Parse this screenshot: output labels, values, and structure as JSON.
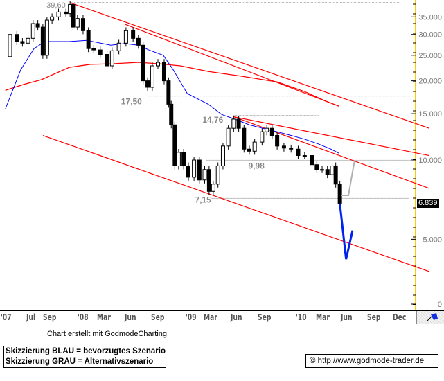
{
  "chart_data": {
    "type": "candlestick",
    "yscale": "log",
    "yticks": [
      "35.000",
      "30.000",
      "25.000",
      "20.000",
      "15.000",
      "10.000",
      "5.000",
      "0"
    ],
    "ytick_values": [
      35,
      30,
      25,
      20,
      15,
      10,
      5
    ],
    "xticks": [
      "'07",
      "Jul",
      "Sep",
      "'08",
      "Mar",
      "Jun",
      "Sep",
      "'09",
      "Mar",
      "Jun",
      "Sep",
      "'10",
      "Mar",
      "Jun",
      "Sep",
      "Dec"
    ],
    "last_value": "6.839",
    "colors": {
      "up": "#ffffff",
      "down": "#000000",
      "ma_short": "#0000ff",
      "ma_long": "#ff0000",
      "trendline": "#ff0000",
      "level": "#808080",
      "scenario_blue": "#0022ee",
      "scenario_gray": "#b0b0b0",
      "axis": "#ffcc00"
    },
    "closes": [
      [
        "2007-04-15",
        24.7
      ],
      [
        "2007-05-01",
        30
      ],
      [
        "2007-05-24",
        28.2
      ],
      [
        "2007-06-12",
        27.8
      ],
      [
        "2007-07-01",
        29
      ],
      [
        "2007-07-18",
        33
      ],
      [
        "2007-08-03",
        32
      ],
      [
        "2007-08-20",
        25
      ],
      [
        "2007-09-03",
        34
      ],
      [
        "2007-09-20",
        35
      ],
      [
        "2007-10-12",
        36.5
      ],
      [
        "2007-11-06",
        36
      ],
      [
        "2007-11-20",
        39
      ],
      [
        "2007-11-30",
        32
      ],
      [
        "2007-12-15",
        34.5
      ],
      [
        "2008-01-03",
        31
      ],
      [
        "2008-01-21",
        26.5
      ],
      [
        "2008-02-08",
        26.2
      ],
      [
        "2008-03-01",
        25.2
      ],
      [
        "2008-03-24",
        22.8
      ],
      [
        "2008-04-10",
        26
      ],
      [
        "2008-05-03",
        27.8
      ],
      [
        "2008-05-27",
        31
      ],
      [
        "2008-06-20",
        29
      ],
      [
        "2008-07-08",
        27.3
      ],
      [
        "2008-07-24",
        20
      ],
      [
        "2008-08-08",
        18.9
      ],
      [
        "2008-08-24",
        22.8
      ],
      [
        "2008-09-12",
        23.5
      ],
      [
        "2008-10-03",
        20
      ],
      [
        "2008-10-18",
        16.3
      ],
      [
        "2008-10-27",
        13.6
      ],
      [
        "2008-11-08",
        9.5
      ],
      [
        "2008-11-21",
        10.7
      ],
      [
        "2008-12-08",
        9.5
      ],
      [
        "2008-12-24",
        8.6
      ],
      [
        "2009-01-12",
        10
      ],
      [
        "2009-01-30",
        8.4
      ],
      [
        "2009-02-17",
        9.2
      ],
      [
        "2009-03-04",
        7.6
      ],
      [
        "2009-03-18",
        8.1
      ],
      [
        "2009-04-03",
        9.5
      ],
      [
        "2009-04-20",
        11.3
      ],
      [
        "2009-05-08",
        13.2
      ],
      [
        "2009-05-26",
        14.3
      ],
      [
        "2009-06-12",
        13.2
      ],
      [
        "2009-06-30",
        11
      ],
      [
        "2009-07-18",
        10.8
      ],
      [
        "2009-08-05",
        11.7
      ],
      [
        "2009-08-30",
        12.8
      ],
      [
        "2009-09-15",
        13.2
      ],
      [
        "2009-10-03",
        12.4
      ],
      [
        "2009-10-20",
        11.3
      ],
      [
        "2009-11-12",
        11.1
      ],
      [
        "2009-12-06",
        11
      ],
      [
        "2009-12-30",
        10.4
      ],
      [
        "2010-01-21",
        10.4
      ],
      [
        "2010-02-15",
        9.6
      ],
      [
        "2010-03-03",
        9.2
      ],
      [
        "2010-03-21",
        9.2
      ],
      [
        "2010-04-08",
        8.8
      ],
      [
        "2010-04-24",
        9.5
      ],
      [
        "2010-05-06",
        8.1
      ],
      [
        "2010-05-20",
        6.84
      ]
    ],
    "ma_short": [
      [
        "2007-04-15",
        15.6
      ],
      [
        "2007-06-06",
        22
      ],
      [
        "2007-07-21",
        26.5
      ],
      [
        "2007-08-27",
        28.2
      ],
      [
        "2007-11-17",
        28.2
      ],
      [
        "2008-01-15",
        28.5
      ],
      [
        "2008-04-06",
        27.3
      ],
      [
        "2008-05-22",
        27.7
      ],
      [
        "2008-07-08",
        27.3
      ],
      [
        "2008-08-12",
        26.2
      ],
      [
        "2008-09-30",
        25
      ],
      [
        "2008-11-03",
        22
      ],
      [
        "2008-12-20",
        17.9
      ],
      [
        "2009-03-01",
        16.3
      ],
      [
        "2009-04-15",
        14.9
      ],
      [
        "2009-05-30",
        14.3
      ],
      [
        "2009-07-18",
        13.6
      ],
      [
        "2009-09-01",
        13.2
      ],
      [
        "2009-10-20",
        12.8
      ],
      [
        "2009-12-06",
        12.4
      ],
      [
        "2010-01-21",
        12
      ],
      [
        "2010-03-09",
        11.5
      ],
      [
        "2010-04-20",
        11
      ],
      [
        "2010-05-18",
        10.6
      ]
    ],
    "ma_long": [
      [
        "2007-04-15",
        18.4
      ],
      [
        "2007-06-18",
        19.4
      ],
      [
        "2007-08-15",
        20.2
      ],
      [
        "2007-11-17",
        22.5
      ],
      [
        "2008-01-27",
        23.1
      ],
      [
        "2008-04-06",
        23.2
      ],
      [
        "2008-07-08",
        23.5
      ],
      [
        "2008-09-18",
        23.2
      ],
      [
        "2008-11-27",
        22.8
      ],
      [
        "2009-03-01",
        21.7
      ],
      [
        "2009-06-24",
        20.8
      ],
      [
        "2009-10-20",
        19.8
      ],
      [
        "2010-01-21",
        18.2
      ],
      [
        "2010-03-30",
        16.8
      ],
      [
        "2010-05-18",
        16
      ]
    ],
    "trendlines": [
      [
        [
          "2007-11-20",
          39.6
        ],
        [
          "2011-03-18",
          13.2
        ]
      ],
      [
        [
          "2007-08-20",
          12.4
        ],
        [
          "2011-03-18",
          3.77
        ]
      ],
      [
        [
          "2008-05-24",
          32.8
        ],
        [
          "2010-05-18",
          16
        ]
      ],
      [
        [
          "2009-05-26",
          14.6
        ],
        [
          "2011-03-18",
          10.4
        ]
      ],
      [
        [
          "2009-05-26",
          14.6
        ],
        [
          "2011-03-18",
          7.8
        ]
      ]
    ],
    "levels": [
      {
        "label": "39,60",
        "value": 39.6,
        "from": "2007-11-20",
        "to": "2010-12-09"
      },
      {
        "label": "17,50",
        "value": 17.5,
        "from": "2008-08-12",
        "to": "2011-01-25"
      },
      {
        "label": "14,76",
        "value": 14.76,
        "from": "2009-05-26",
        "to": "2010-03-09"
      },
      {
        "label": "9,98",
        "value": 9.98,
        "from": "2009-02-24",
        "to": "2011-01-25"
      },
      {
        "label": "7,15",
        "value": 7.15,
        "from": "2009-03-10",
        "to": "2011-01-10"
      }
    ],
    "scenario_blue": [
      [
        "2010-05-20",
        6.84
      ],
      [
        "2010-06-10",
        4.2
      ],
      [
        "2010-07-02",
        5.4
      ]
    ],
    "scenario_gray": [
      [
        "2010-05-24",
        7.34
      ],
      [
        "2010-06-18",
        7.34
      ],
      [
        "2010-07-09",
        10
      ]
    ]
  },
  "footer": {
    "credit": "Chart erstellt mit GodmodeCharting",
    "legend_blue": "Skizzierung BLAU = bevorzugtes Szenario",
    "legend_gray": "Skizzierung GRAU = Alternativszenario",
    "copyright": "© http://www.godmode-trader.de"
  }
}
